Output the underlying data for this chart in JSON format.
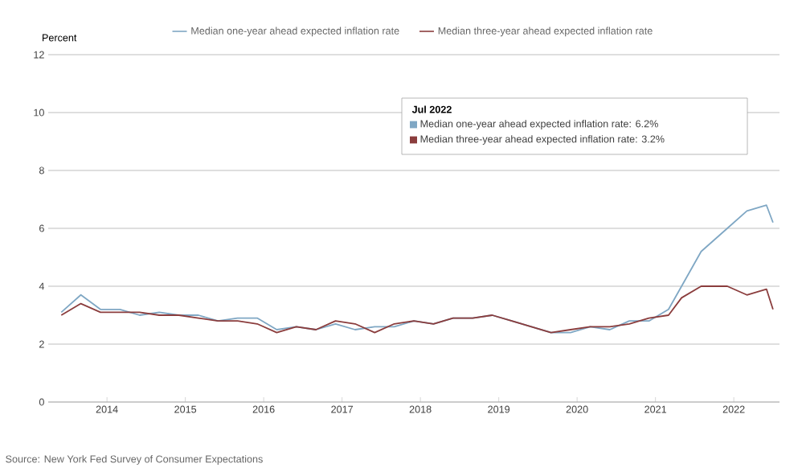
{
  "chart_data": {
    "type": "line",
    "ylabel": "Percent",
    "x": [
      "2013-06",
      "2013-09",
      "2013-12",
      "2014-03",
      "2014-06",
      "2014-09",
      "2014-12",
      "2015-03",
      "2015-06",
      "2015-09",
      "2015-12",
      "2016-03",
      "2016-06",
      "2016-09",
      "2016-12",
      "2017-03",
      "2017-06",
      "2017-09",
      "2017-12",
      "2018-03",
      "2018-06",
      "2018-09",
      "2018-12",
      "2019-03",
      "2019-06",
      "2019-09",
      "2019-12",
      "2020-03",
      "2020-06",
      "2020-09",
      "2020-12",
      "2021-03",
      "2021-05",
      "2021-08",
      "2021-12",
      "2022-03",
      "2022-06",
      "2022-07"
    ],
    "series": [
      {
        "name": "Median one-year ahead expected inflation rate",
        "color": "#7fa7c4",
        "values": [
          3.1,
          3.7,
          3.2,
          3.2,
          3.0,
          3.1,
          3.0,
          3.0,
          2.8,
          2.9,
          2.9,
          2.5,
          2.6,
          2.5,
          2.7,
          2.5,
          2.6,
          2.6,
          2.8,
          2.7,
          2.9,
          2.9,
          3.0,
          2.8,
          2.6,
          2.4,
          2.4,
          2.6,
          2.5,
          2.8,
          2.8,
          3.2,
          4.0,
          5.2,
          6.0,
          6.6,
          6.8,
          6.2
        ]
      },
      {
        "name": "Median three-year ahead expected inflation rate",
        "color": "#8b3d3d",
        "values": [
          3.0,
          3.4,
          3.1,
          3.1,
          3.1,
          3.0,
          3.0,
          2.9,
          2.8,
          2.8,
          2.7,
          2.4,
          2.6,
          2.5,
          2.8,
          2.7,
          2.4,
          2.7,
          2.8,
          2.7,
          2.9,
          2.9,
          3.0,
          2.8,
          2.6,
          2.4,
          2.5,
          2.6,
          2.6,
          2.7,
          2.9,
          3.0,
          3.6,
          4.0,
          4.0,
          3.7,
          3.9,
          3.2
        ]
      }
    ],
    "xlim": [
      "2013-04",
      "2022-08"
    ],
    "xticks": [
      "2014",
      "2015",
      "2016",
      "2017",
      "2018",
      "2019",
      "2020",
      "2021",
      "2022"
    ],
    "ylim": [
      0,
      12
    ],
    "yticks": [
      0,
      2,
      4,
      6,
      8,
      10,
      12
    ],
    "grid": "y",
    "legend": "top",
    "marker": "none",
    "line_style": "solid",
    "annotations": [
      "Jul 2022",
      "Median one-year ahead expected inflation rate: 6.2%",
      "Median three-year ahead expected inflation rate: 3.2%",
      "Source: New York Fed Survey of Consumer Expectations"
    ]
  }
}
